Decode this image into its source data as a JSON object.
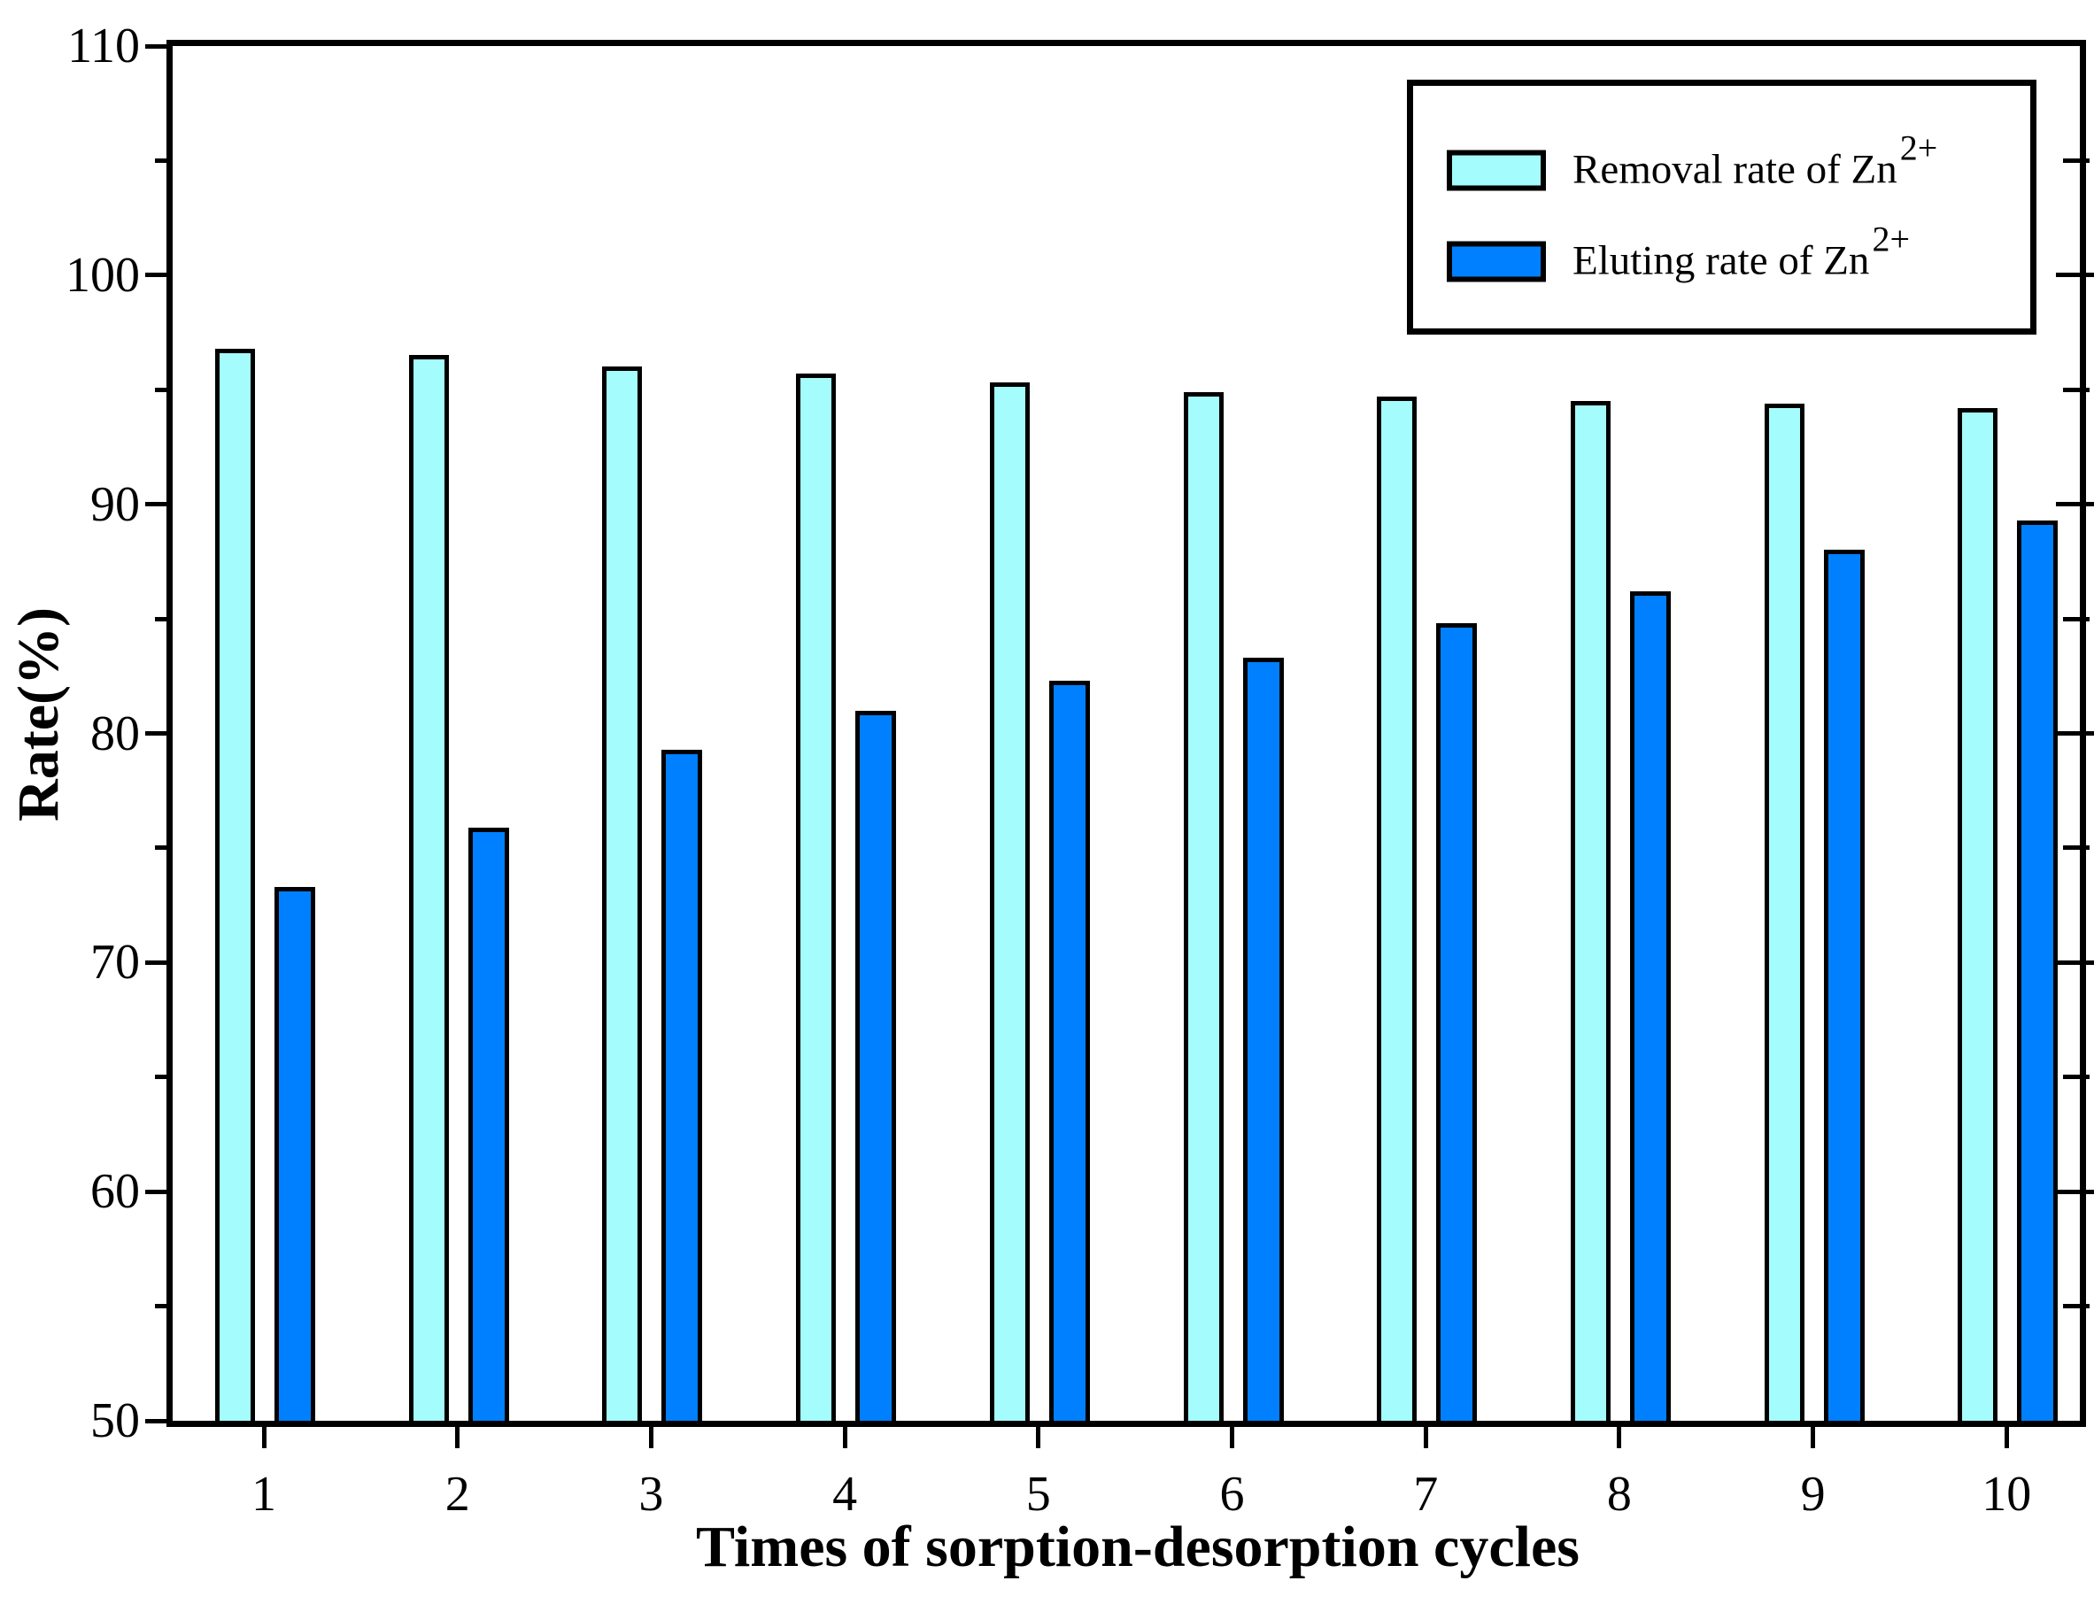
{
  "chart_data": {
    "type": "bar",
    "title": "",
    "xlabel": "Times of sorption-desorption cycles",
    "ylabel": "Rate(%)",
    "ylim": [
      50,
      110
    ],
    "yticks": [
      50,
      60,
      70,
      80,
      90,
      100,
      110
    ],
    "yminorticks": [
      55,
      65,
      75,
      85,
      95,
      105
    ],
    "grid": false,
    "legend_position": "top-right-boxed",
    "categories": [
      "1",
      "2",
      "3",
      "4",
      "5",
      "6",
      "7",
      "8",
      "9",
      "10"
    ],
    "series": [
      {
        "name": "Removal rate of Zn",
        "sup": "2+",
        "color": "#A5FCFC",
        "values": [
          96.8,
          96.5,
          96.0,
          95.7,
          95.3,
          94.9,
          94.7,
          94.5,
          94.4,
          94.2
        ]
      },
      {
        "name": "Eluting rate of Zn",
        "sup": "2+",
        "color": "#0080FF",
        "values": [
          73.3,
          75.9,
          79.3,
          81.0,
          82.3,
          83.3,
          84.8,
          86.2,
          88.0,
          89.3
        ]
      }
    ],
    "bar_outline_color": "#000000",
    "axis_color": "#000000",
    "background_color": "#FFFFFF"
  }
}
